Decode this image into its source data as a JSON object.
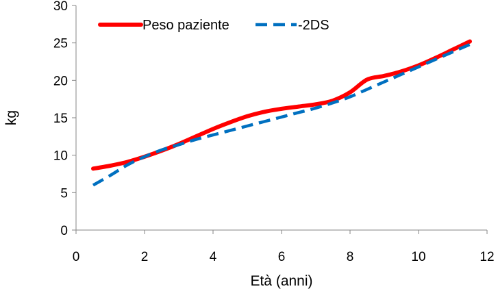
{
  "chart_data": {
    "type": "line",
    "title": "",
    "xlabel": "Età (anni)",
    "ylabel": "kg",
    "xlim": [
      0,
      12
    ],
    "ylim": [
      0,
      30
    ],
    "xticks": [
      0,
      2,
      4,
      6,
      8,
      10,
      12
    ],
    "yticks": [
      0,
      5,
      10,
      15,
      20,
      25,
      30
    ],
    "grid": false,
    "legend_position": "top-left",
    "series": [
      {
        "name": "Peso paziente",
        "color": "#ff0000",
        "style": "solid",
        "x": [
          0.5,
          1.0,
          1.5,
          2.0,
          2.5,
          3.0,
          3.5,
          4.0,
          4.5,
          5.0,
          5.5,
          6.0,
          6.5,
          7.0,
          7.5,
          8.0,
          8.5,
          9.0,
          9.5,
          10.0,
          10.5,
          11.0,
          11.5
        ],
        "y": [
          8.2,
          8.6,
          9.1,
          9.8,
          10.6,
          11.5,
          12.5,
          13.5,
          14.4,
          15.2,
          15.8,
          16.2,
          16.5,
          16.8,
          17.3,
          18.4,
          20.1,
          20.6,
          21.2,
          22.0,
          23.0,
          24.1,
          25.2
        ]
      },
      {
        "name": "-2DS",
        "color": "#0070c0",
        "style": "dashed",
        "x": [
          0.5,
          1.0,
          1.5,
          2.0,
          2.5,
          3.0,
          3.5,
          4.0,
          4.5,
          5.0,
          5.5,
          6.0,
          6.5,
          7.0,
          7.5,
          8.0,
          8.5,
          9.0,
          9.5,
          10.0,
          10.5,
          11.0,
          11.5
        ],
        "y": [
          6.0,
          7.3,
          8.7,
          9.8,
          10.7,
          11.4,
          12.1,
          12.7,
          13.3,
          13.9,
          14.5,
          15.1,
          15.7,
          16.3,
          17.0,
          17.8,
          18.8,
          19.8,
          20.8,
          21.8,
          22.8,
          23.8,
          24.8
        ]
      }
    ]
  }
}
